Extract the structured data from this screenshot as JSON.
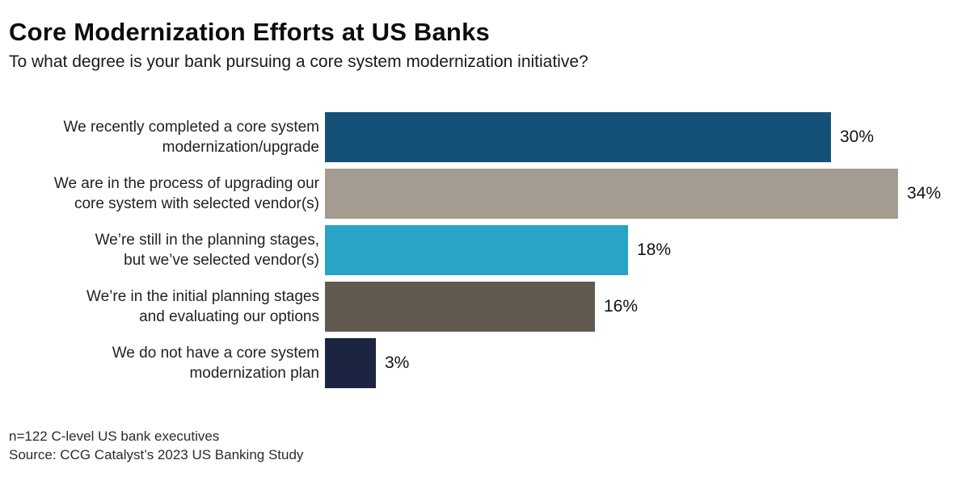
{
  "header": {
    "title": "Core Modernization Efforts at US Banks",
    "subtitle": "To what degree is your bank pursuing a core system modernization initiative?"
  },
  "chart_data": {
    "type": "bar",
    "orientation": "horizontal",
    "title": "Core Modernization Efforts at US Banks",
    "subtitle": "To what degree is your bank pursuing a core system modernization initiative?",
    "categories": [
      "We recently completed a core system\nmodernization/upgrade",
      "We are in the process of upgrading our\ncore system with selected vendor(s)",
      "We’re still in the planning stages,\nbut we’ve selected vendor(s)",
      "We’re in the initial planning stages\nand evaluating our options",
      "We do not have a core system\nmodernization plan"
    ],
    "values": [
      30,
      34,
      18,
      16,
      3
    ],
    "value_labels": [
      "30%",
      "34%",
      "18%",
      "16%",
      "3%"
    ],
    "bar_colors": [
      "#145078",
      "#A49C90",
      "#29A4C7",
      "#615A51",
      "#1B2440"
    ],
    "unit": "%",
    "xlim": [
      0,
      38
    ],
    "grid": false,
    "legend": false,
    "value_label_position": "outside-end"
  },
  "footer": {
    "sample_note": "n=122 C-level US bank executives",
    "source_note": "Source: CCG Catalyst’s 2023 US Banking Study"
  }
}
